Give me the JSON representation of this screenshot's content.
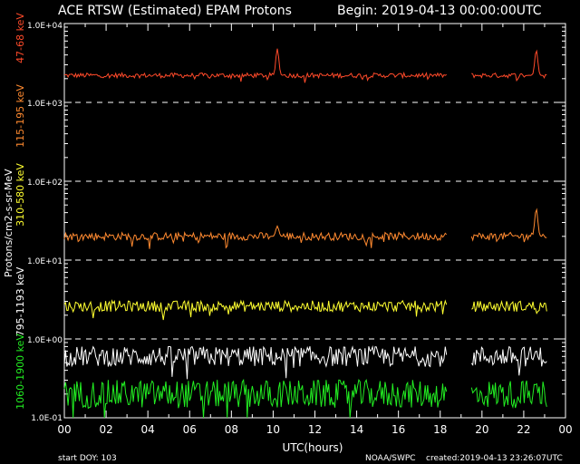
{
  "chart_data": {
    "type": "line",
    "title": "ACE RTSW (Estimated) EPAM Protons",
    "begin_label": "Begin: 2019-04-13 00:00:00UTC",
    "xlabel": "UTC(hours)",
    "ylabel": "Protons/cm2-s-sr-MeV",
    "xlim": [
      0,
      24
    ],
    "ylim": [
      0.1,
      10000
    ],
    "yscale": "log",
    "x_ticks": [
      "00",
      "02",
      "04",
      "06",
      "08",
      "10",
      "12",
      "14",
      "16",
      "18",
      "20",
      "22",
      "00"
    ],
    "y_ticks": [
      "1.0E-01",
      "1.0E+00",
      "1.0E+01",
      "1.0E+02",
      "1.0E+03",
      "1.0E+04"
    ],
    "grid": "dashed horizontal at each decade",
    "data_gap_hours": [
      18.3,
      19.5
    ],
    "series": [
      {
        "name": "47-68 keV",
        "color": "#ff4a2a",
        "level": 2200,
        "jitter": 0.03,
        "peaks": [
          [
            10.2,
            4800
          ],
          [
            22.6,
            4600
          ]
        ]
      },
      {
        "name": "115-195 keV",
        "color": "#ff8a30",
        "level": 20,
        "jitter": 0.05,
        "peaks": [
          [
            10.2,
            27
          ],
          [
            22.6,
            45
          ]
        ]
      },
      {
        "name": "310-580 keV",
        "color": "#ffff30",
        "level": 2.6,
        "jitter": 0.07,
        "peaks": []
      },
      {
        "name": "795-1193 keV",
        "color": "#ffffff",
        "level": 0.6,
        "jitter": 0.13,
        "peaks": []
      },
      {
        "name": "1060-1900 keV",
        "color": "#22ee22",
        "level": 0.2,
        "jitter": 0.18,
        "peaks": []
      }
    ]
  },
  "footer": {
    "start_doy": "start DOY: 103",
    "source": "NOAA/SWPC",
    "created": "created:2019-04-13 23:26:07UTC"
  }
}
